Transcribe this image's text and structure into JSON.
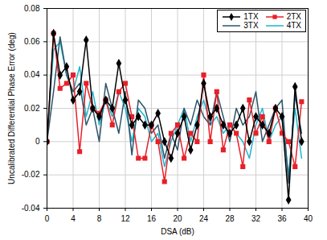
{
  "chart_data": {
    "type": "line",
    "x_label": "DSA (dB)",
    "y_label": "Uncalibrated Differential Phase Error (deg)",
    "x": [
      0,
      1,
      2,
      3,
      4,
      5,
      6,
      7,
      8,
      9,
      10,
      11,
      12,
      13,
      14,
      15,
      16,
      17,
      18,
      19,
      20,
      21,
      22,
      23,
      24,
      25,
      26,
      27,
      28,
      29,
      30,
      31,
      32,
      33,
      34,
      35,
      36,
      37,
      38,
      39
    ],
    "series": [
      {
        "name": "1TX",
        "color": "#000000",
        "marker": "diamond",
        "values": [
          0,
          0.065,
          0.04,
          0.045,
          0.025,
          0.03,
          0.061,
          0.02,
          0.015,
          0.025,
          0.02,
          0.047,
          0.025,
          0.01,
          0.015,
          0.01,
          0.01,
          0.017,
          0.0,
          -0.01,
          0.005,
          0.015,
          -0.005,
          0.01,
          0.035,
          0.015,
          0.02,
          0.01,
          0.005,
          0.01,
          0.02,
          0.0,
          0.015,
          0.01,
          0.005,
          0.02,
          0.015,
          -0.035,
          0.033,
          0.0
        ]
      },
      {
        "name": "2TX",
        "color": "#e8202a",
        "marker": "square",
        "values": [
          0,
          0.065,
          0.032,
          0.035,
          0.04,
          -0.006,
          0.035,
          0.02,
          0.017,
          0.025,
          0.01,
          0.03,
          0.035,
          0.015,
          -0.01,
          -0.01,
          0.01,
          0.0,
          -0.024,
          0.005,
          0.01,
          -0.01,
          0.005,
          0.0,
          0.04,
          0.0,
          0.03,
          -0.005,
          0.01,
          0.005,
          -0.015,
          0.025,
          0.005,
          0.015,
          0.0,
          0.02,
          0.005,
          0.0,
          -0.015,
          0.024
        ]
      },
      {
        "name": "3TX",
        "color": "#2b5468",
        "marker": "none",
        "values": [
          0,
          0.03,
          0.063,
          0.04,
          0.03,
          0.035,
          0.01,
          0.02,
          0.0,
          0.035,
          0.02,
          0.005,
          0.03,
          -0.008,
          0.025,
          0.02,
          0.005,
          0.01,
          -0.01,
          0.005,
          -0.005,
          0.02,
          0.01,
          0.025,
          0.015,
          0.01,
          0.03,
          0.015,
          0.0,
          0.02,
          0.01,
          0.015,
          0.03,
          0.0,
          0.01,
          0.02,
          0.025,
          -0.025,
          0.028,
          0.005
        ]
      },
      {
        "name": "4TX",
        "color": "#1fb5cc",
        "marker": "none",
        "values": [
          0,
          0.055,
          0.06,
          0.04,
          0.03,
          0.045,
          0.015,
          0.03,
          0.01,
          0.025,
          0.015,
          0.03,
          0.02,
          0.0,
          0.02,
          0.015,
          0.0,
          0.005,
          -0.015,
          0.0,
          0.01,
          0.02,
          0.0,
          0.015,
          0.025,
          0.01,
          0.015,
          0.005,
          0.01,
          0.005,
          0.0,
          -0.01,
          0.01,
          0.02,
          0.0,
          0.01,
          0.015,
          -0.02,
          0.02,
          -0.01
        ]
      }
    ],
    "xlim": [
      0,
      40
    ],
    "xticks": [
      0,
      4,
      8,
      12,
      16,
      20,
      24,
      28,
      32,
      36,
      40
    ],
    "ylim": [
      -0.04,
      0.08
    ],
    "yticks": [
      -0.04,
      -0.02,
      0,
      0.02,
      0.04,
      0.06,
      0.08
    ],
    "grid": true,
    "legend": "top-right"
  }
}
